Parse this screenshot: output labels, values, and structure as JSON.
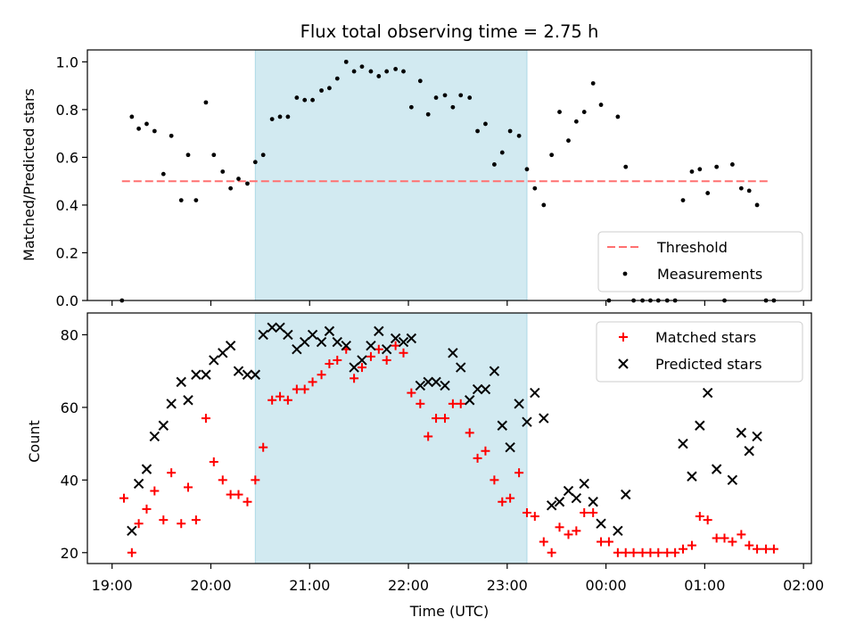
{
  "chart_data": {
    "title": "Flux total observing time = 2.75 h",
    "xlabel": "Time (UTC)",
    "x_unit": "hours after 19:00 UTC",
    "x_range": [
      18.75,
      26.08
    ],
    "x_ticks": [
      {
        "x": 19,
        "label": "19:00"
      },
      {
        "x": 20,
        "label": "20:00"
      },
      {
        "x": 21,
        "label": "21:00"
      },
      {
        "x": 22,
        "label": "22:00"
      },
      {
        "x": 23,
        "label": "23:00"
      },
      {
        "x": 24,
        "label": "00:00"
      },
      {
        "x": 25,
        "label": "01:00"
      },
      {
        "x": 26,
        "label": "02:00"
      }
    ],
    "observing_window": {
      "start": 20.45,
      "end": 23.2,
      "color": "#add8e6"
    },
    "panels": [
      {
        "type": "scatter",
        "ylabel": "Matched/Predicted stars",
        "ylim": [
          0,
          1.05
        ],
        "yticks": [
          "0.0",
          "0.2",
          "0.4",
          "0.6",
          "0.8",
          "1.0"
        ],
        "threshold": {
          "name": "Threshold",
          "value": 0.5,
          "x_start": 19.1,
          "x_end": 25.67,
          "color": "#ff7070"
        },
        "legend": {
          "position": "lower-right",
          "entries": [
            "Threshold",
            "Measurements"
          ]
        },
        "series": [
          {
            "name": "Measurements",
            "color": "#000000",
            "points": [
              [
                19.1,
                0.0
              ],
              [
                19.2,
                0.77
              ],
              [
                19.27,
                0.72
              ],
              [
                19.35,
                0.74
              ],
              [
                19.43,
                0.71
              ],
              [
                19.52,
                0.53
              ],
              [
                19.6,
                0.69
              ],
              [
                19.7,
                0.42
              ],
              [
                19.77,
                0.61
              ],
              [
                19.85,
                0.42
              ],
              [
                19.95,
                0.83
              ],
              [
                20.03,
                0.61
              ],
              [
                20.12,
                0.54
              ],
              [
                20.2,
                0.47
              ],
              [
                20.28,
                0.51
              ],
              [
                20.37,
                0.49
              ],
              [
                20.45,
                0.58
              ],
              [
                20.53,
                0.61
              ],
              [
                20.62,
                0.76
              ],
              [
                20.7,
                0.77
              ],
              [
                20.78,
                0.77
              ],
              [
                20.87,
                0.85
              ],
              [
                20.95,
                0.84
              ],
              [
                21.03,
                0.84
              ],
              [
                21.12,
                0.88
              ],
              [
                21.2,
                0.89
              ],
              [
                21.28,
                0.93
              ],
              [
                21.37,
                1.0
              ],
              [
                21.45,
                0.96
              ],
              [
                21.53,
                0.98
              ],
              [
                21.62,
                0.96
              ],
              [
                21.7,
                0.94
              ],
              [
                21.78,
                0.96
              ],
              [
                21.87,
                0.97
              ],
              [
                21.95,
                0.96
              ],
              [
                22.03,
                0.81
              ],
              [
                22.12,
                0.92
              ],
              [
                22.2,
                0.78
              ],
              [
                22.28,
                0.85
              ],
              [
                22.37,
                0.86
              ],
              [
                22.45,
                0.81
              ],
              [
                22.53,
                0.86
              ],
              [
                22.62,
                0.85
              ],
              [
                22.7,
                0.71
              ],
              [
                22.78,
                0.74
              ],
              [
                22.87,
                0.57
              ],
              [
                22.95,
                0.62
              ],
              [
                23.03,
                0.71
              ],
              [
                23.12,
                0.69
              ],
              [
                23.2,
                0.55
              ],
              [
                23.28,
                0.47
              ],
              [
                23.37,
                0.4
              ],
              [
                23.45,
                0.61
              ],
              [
                23.53,
                0.79
              ],
              [
                23.62,
                0.67
              ],
              [
                23.7,
                0.75
              ],
              [
                23.78,
                0.79
              ],
              [
                23.87,
                0.91
              ],
              [
                23.95,
                0.82
              ],
              [
                24.03,
                0.0
              ],
              [
                24.12,
                0.77
              ],
              [
                24.2,
                0.56
              ],
              [
                24.28,
                0.0
              ],
              [
                24.37,
                0.0
              ],
              [
                24.45,
                0.0
              ],
              [
                24.53,
                0.0
              ],
              [
                24.62,
                0.0
              ],
              [
                24.7,
                0.0
              ],
              [
                24.78,
                0.42
              ],
              [
                24.87,
                0.54
              ],
              [
                24.95,
                0.55
              ],
              [
                25.03,
                0.45
              ],
              [
                25.12,
                0.56
              ],
              [
                25.2,
                0.0
              ],
              [
                25.28,
                0.57
              ],
              [
                25.37,
                0.47
              ],
              [
                25.45,
                0.46
              ],
              [
                25.53,
                0.4
              ],
              [
                25.62,
                0.0
              ],
              [
                25.7,
                0.0
              ]
            ]
          }
        ]
      },
      {
        "type": "scatter",
        "ylabel": "Count",
        "ylim": [
          17,
          86
        ],
        "yticks": [
          "20",
          "40",
          "60",
          "80"
        ],
        "legend": {
          "position": "top-right",
          "entries": [
            "Matched stars",
            "Predicted stars"
          ]
        },
        "series": [
          {
            "name": "Matched stars",
            "marker": "+",
            "color": "#ff0000",
            "points": [
              [
                19.12,
                35
              ],
              [
                19.2,
                20
              ],
              [
                19.27,
                28
              ],
              [
                19.35,
                32
              ],
              [
                19.43,
                37
              ],
              [
                19.52,
                29
              ],
              [
                19.6,
                42
              ],
              [
                19.7,
                28
              ],
              [
                19.77,
                38
              ],
              [
                19.85,
                29
              ],
              [
                19.95,
                57
              ],
              [
                20.03,
                45
              ],
              [
                20.12,
                40
              ],
              [
                20.2,
                36
              ],
              [
                20.28,
                36
              ],
              [
                20.37,
                34
              ],
              [
                20.45,
                40
              ],
              [
                20.53,
                49
              ],
              [
                20.62,
                62
              ],
              [
                20.7,
                63
              ],
              [
                20.78,
                62
              ],
              [
                20.87,
                65
              ],
              [
                20.95,
                65
              ],
              [
                21.03,
                67
              ],
              [
                21.12,
                69
              ],
              [
                21.2,
                72
              ],
              [
                21.28,
                73
              ],
              [
                21.37,
                76
              ],
              [
                21.45,
                68
              ],
              [
                21.53,
                71
              ],
              [
                21.62,
                74
              ],
              [
                21.7,
                76
              ],
              [
                21.78,
                73
              ],
              [
                21.87,
                77
              ],
              [
                21.95,
                75
              ],
              [
                22.03,
                64
              ],
              [
                22.12,
                61
              ],
              [
                22.2,
                52
              ],
              [
                22.28,
                57
              ],
              [
                22.37,
                57
              ],
              [
                22.45,
                61
              ],
              [
                22.53,
                61
              ],
              [
                22.62,
                53
              ],
              [
                22.7,
                46
              ],
              [
                22.78,
                48
              ],
              [
                22.87,
                40
              ],
              [
                22.95,
                34
              ],
              [
                23.03,
                35
              ],
              [
                23.12,
                42
              ],
              [
                23.2,
                31
              ],
              [
                23.28,
                30
              ],
              [
                23.37,
                23
              ],
              [
                23.45,
                20
              ],
              [
                23.53,
                27
              ],
              [
                23.62,
                25
              ],
              [
                23.7,
                26
              ],
              [
                23.78,
                31
              ],
              [
                23.87,
                31
              ],
              [
                23.95,
                23
              ],
              [
                24.03,
                23
              ],
              [
                24.12,
                20
              ],
              [
                24.2,
                20
              ],
              [
                24.28,
                20
              ],
              [
                24.37,
                20
              ],
              [
                24.45,
                20
              ],
              [
                24.53,
                20
              ],
              [
                24.62,
                20
              ],
              [
                24.7,
                20
              ],
              [
                24.78,
                21
              ],
              [
                24.87,
                22
              ],
              [
                24.95,
                30
              ],
              [
                25.03,
                29
              ],
              [
                25.12,
                24
              ],
              [
                25.2,
                24
              ],
              [
                25.28,
                23
              ],
              [
                25.37,
                25
              ],
              [
                25.45,
                22
              ],
              [
                25.53,
                21
              ],
              [
                25.62,
                21
              ],
              [
                25.7,
                21
              ]
            ]
          },
          {
            "name": "Predicted stars",
            "marker": "x",
            "color": "#000000",
            "points": [
              [
                19.2,
                26
              ],
              [
                19.27,
                39
              ],
              [
                19.35,
                43
              ],
              [
                19.43,
                52
              ],
              [
                19.52,
                55
              ],
              [
                19.6,
                61
              ],
              [
                19.7,
                67
              ],
              [
                19.77,
                62
              ],
              [
                19.85,
                69
              ],
              [
                19.95,
                69
              ],
              [
                20.03,
                73
              ],
              [
                20.12,
                75
              ],
              [
                20.2,
                77
              ],
              [
                20.28,
                70
              ],
              [
                20.37,
                69
              ],
              [
                20.45,
                69
              ],
              [
                20.53,
                80
              ],
              [
                20.62,
                82
              ],
              [
                20.7,
                82
              ],
              [
                20.78,
                80
              ],
              [
                20.87,
                76
              ],
              [
                20.95,
                78
              ],
              [
                21.03,
                80
              ],
              [
                21.12,
                78
              ],
              [
                21.2,
                81
              ],
              [
                21.28,
                78
              ],
              [
                21.37,
                77
              ],
              [
                21.45,
                71
              ],
              [
                21.53,
                73
              ],
              [
                21.62,
                77
              ],
              [
                21.7,
                81
              ],
              [
                21.78,
                76
              ],
              [
                21.87,
                79
              ],
              [
                21.95,
                78
              ],
              [
                22.03,
                79
              ],
              [
                22.12,
                66
              ],
              [
                22.2,
                67
              ],
              [
                22.28,
                67
              ],
              [
                22.37,
                66
              ],
              [
                22.45,
                75
              ],
              [
                22.53,
                71
              ],
              [
                22.62,
                62
              ],
              [
                22.7,
                65
              ],
              [
                22.78,
                65
              ],
              [
                22.87,
                70
              ],
              [
                22.95,
                55
              ],
              [
                23.03,
                49
              ],
              [
                23.12,
                61
              ],
              [
                23.2,
                56
              ],
              [
                23.28,
                64
              ],
              [
                23.37,
                57
              ],
              [
                23.45,
                33
              ],
              [
                23.53,
                34
              ],
              [
                23.62,
                37
              ],
              [
                23.7,
                35
              ],
              [
                23.78,
                39
              ],
              [
                23.87,
                34
              ],
              [
                23.95,
                28
              ],
              [
                24.12,
                26
              ],
              [
                24.2,
                36
              ],
              [
                24.78,
                50
              ],
              [
                24.87,
                41
              ],
              [
                24.95,
                55
              ],
              [
                25.03,
                64
              ],
              [
                25.12,
                43
              ],
              [
                25.28,
                40
              ],
              [
                25.37,
                53
              ],
              [
                25.45,
                48
              ],
              [
                25.53,
                52
              ]
            ]
          }
        ]
      }
    ]
  }
}
